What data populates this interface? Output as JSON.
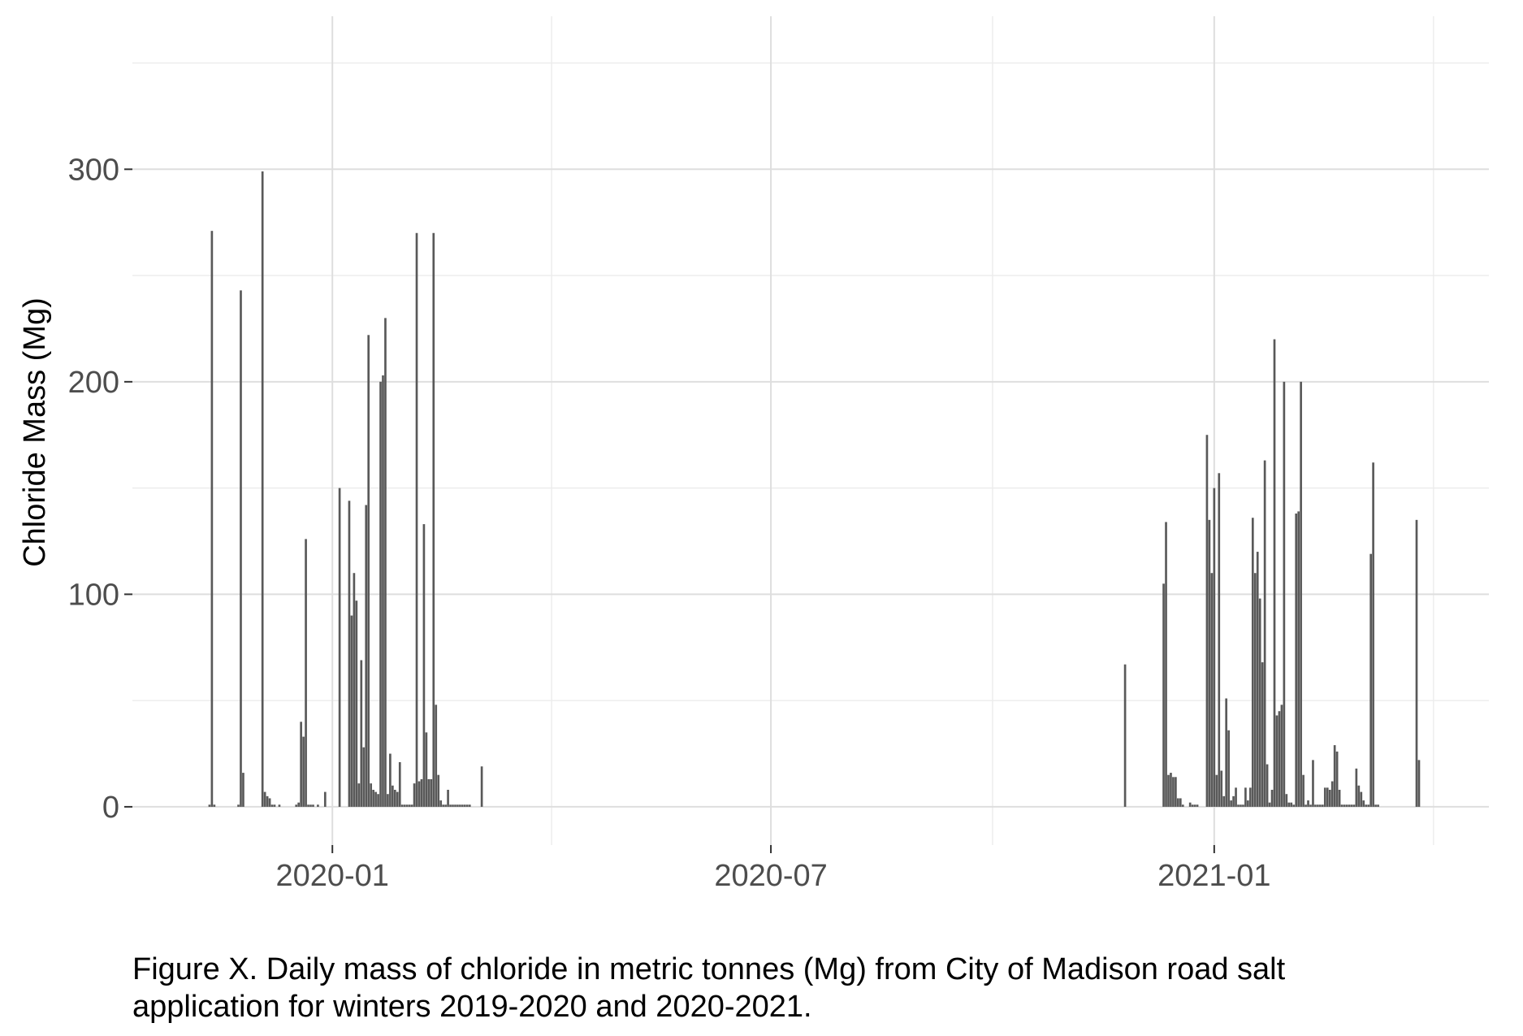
{
  "chart_data": {
    "type": "bar",
    "ylabel": "Chloride Mass (Mg)",
    "xlabel": "",
    "xlim": [
      "2019-10-10",
      "2021-04-25"
    ],
    "ylim": [
      -18,
      372
    ],
    "grid": true,
    "x_ticks": [
      {
        "date": "2020-01-01",
        "label": "2020-01"
      },
      {
        "date": "2020-07-01",
        "label": "2020-07"
      },
      {
        "date": "2021-01-01",
        "label": "2021-01"
      }
    ],
    "y_ticks": [
      0,
      100,
      200,
      300
    ],
    "bar_color": "#595959",
    "x": [
      "2019-11-11",
      "2019-11-12",
      "2019-11-13",
      "2019-11-23",
      "2019-11-24",
      "2019-11-25",
      "2019-12-03",
      "2019-12-04",
      "2019-12-05",
      "2019-12-06",
      "2019-12-07",
      "2019-12-08",
      "2019-12-10",
      "2019-12-17",
      "2019-12-18",
      "2019-12-19",
      "2019-12-20",
      "2019-12-21",
      "2019-12-22",
      "2019-12-23",
      "2019-12-24",
      "2019-12-26",
      "2019-12-29",
      "2020-01-04",
      "2020-01-08",
      "2020-01-09",
      "2020-01-10",
      "2020-01-11",
      "2020-01-12",
      "2020-01-13",
      "2020-01-14",
      "2020-01-15",
      "2020-01-16",
      "2020-01-17",
      "2020-01-18",
      "2020-01-19",
      "2020-01-20",
      "2020-01-21",
      "2020-01-22",
      "2020-01-23",
      "2020-01-24",
      "2020-01-25",
      "2020-01-26",
      "2020-01-27",
      "2020-01-28",
      "2020-01-29",
      "2020-01-30",
      "2020-01-31",
      "2020-02-01",
      "2020-02-02",
      "2020-02-03",
      "2020-02-04",
      "2020-02-05",
      "2020-02-06",
      "2020-02-07",
      "2020-02-08",
      "2020-02-09",
      "2020-02-10",
      "2020-02-11",
      "2020-02-12",
      "2020-02-13",
      "2020-02-14",
      "2020-02-15",
      "2020-02-16",
      "2020-02-17",
      "2020-02-18",
      "2020-02-19",
      "2020-02-20",
      "2020-02-21",
      "2020-02-22",
      "2020-02-23",
      "2020-02-24",
      "2020-02-25",
      "2020-02-26",
      "2020-02-27",
      "2020-03-03",
      "2020-11-25",
      "2020-12-11",
      "2020-12-12",
      "2020-12-13",
      "2020-12-14",
      "2020-12-15",
      "2020-12-16",
      "2020-12-17",
      "2020-12-18",
      "2020-12-19",
      "2020-12-22",
      "2020-12-23",
      "2020-12-24",
      "2020-12-25",
      "2020-12-29",
      "2020-12-30",
      "2020-12-31",
      "2021-01-01",
      "2021-01-02",
      "2021-01-03",
      "2021-01-04",
      "2021-01-05",
      "2021-01-06",
      "2021-01-07",
      "2021-01-08",
      "2021-01-09",
      "2021-01-10",
      "2021-01-11",
      "2021-01-12",
      "2021-01-13",
      "2021-01-14",
      "2021-01-15",
      "2021-01-16",
      "2021-01-17",
      "2021-01-18",
      "2021-01-19",
      "2021-01-20",
      "2021-01-21",
      "2021-01-22",
      "2021-01-23",
      "2021-01-24",
      "2021-01-25",
      "2021-01-26",
      "2021-01-27",
      "2021-01-28",
      "2021-01-29",
      "2021-01-30",
      "2021-01-31",
      "2021-02-01",
      "2021-02-02",
      "2021-02-03",
      "2021-02-04",
      "2021-02-05",
      "2021-02-06",
      "2021-02-07",
      "2021-02-08",
      "2021-02-09",
      "2021-02-10",
      "2021-02-11",
      "2021-02-12",
      "2021-02-13",
      "2021-02-14",
      "2021-02-15",
      "2021-02-16",
      "2021-02-17",
      "2021-02-18",
      "2021-02-19",
      "2021-02-20",
      "2021-02-21",
      "2021-02-22",
      "2021-02-23",
      "2021-02-24",
      "2021-02-25",
      "2021-02-26",
      "2021-02-27",
      "2021-02-28",
      "2021-03-01",
      "2021-03-02",
      "2021-03-03",
      "2021-03-04",
      "2021-03-05",
      "2021-03-06",
      "2021-03-07",
      "2021-03-08",
      "2021-03-09",
      "2021-03-10",
      "2021-03-26",
      "2021-03-27"
    ],
    "values": [
      1,
      271,
      1,
      1,
      243,
      16,
      299,
      7,
      5,
      4,
      1,
      1,
      1,
      1,
      2,
      40,
      33,
      126,
      1,
      1,
      1,
      1,
      7,
      150,
      144,
      90,
      110,
      97,
      11,
      69,
      28,
      142,
      222,
      11,
      8,
      7,
      6,
      200,
      203,
      230,
      6,
      25,
      10,
      8,
      7,
      21,
      1,
      1,
      1,
      1,
      1,
      11,
      270,
      12,
      13,
      133,
      35,
      13,
      13,
      270,
      48,
      15,
      3,
      1,
      1,
      8,
      1,
      1,
      1,
      1,
      1,
      1,
      1,
      1,
      1,
      19,
      67,
      105,
      134,
      15,
      16,
      14,
      14,
      4,
      4,
      1,
      2,
      1,
      1,
      1,
      175,
      135,
      110,
      150,
      15,
      157,
      17,
      5,
      51,
      36,
      3,
      5,
      9,
      1,
      1,
      1,
      9,
      3,
      9,
      136,
      110,
      120,
      98,
      68,
      163,
      20,
      2,
      8,
      220,
      43,
      45,
      48,
      200,
      6,
      2,
      2,
      1,
      138,
      139,
      200,
      15,
      1,
      3,
      1,
      22,
      1,
      1,
      1,
      1,
      9,
      9,
      8,
      12,
      29,
      26,
      8,
      1,
      1,
      1,
      1,
      1,
      1,
      18,
      10,
      7,
      3,
      1,
      1,
      119,
      162,
      1,
      1,
      135,
      22
    ]
  },
  "caption": {
    "line1": "Figure X. Daily mass of chloride in metric tonnes (Mg) from City of Madison road salt",
    "line2": "application for winters 2019-2020 and 2020-2021."
  }
}
